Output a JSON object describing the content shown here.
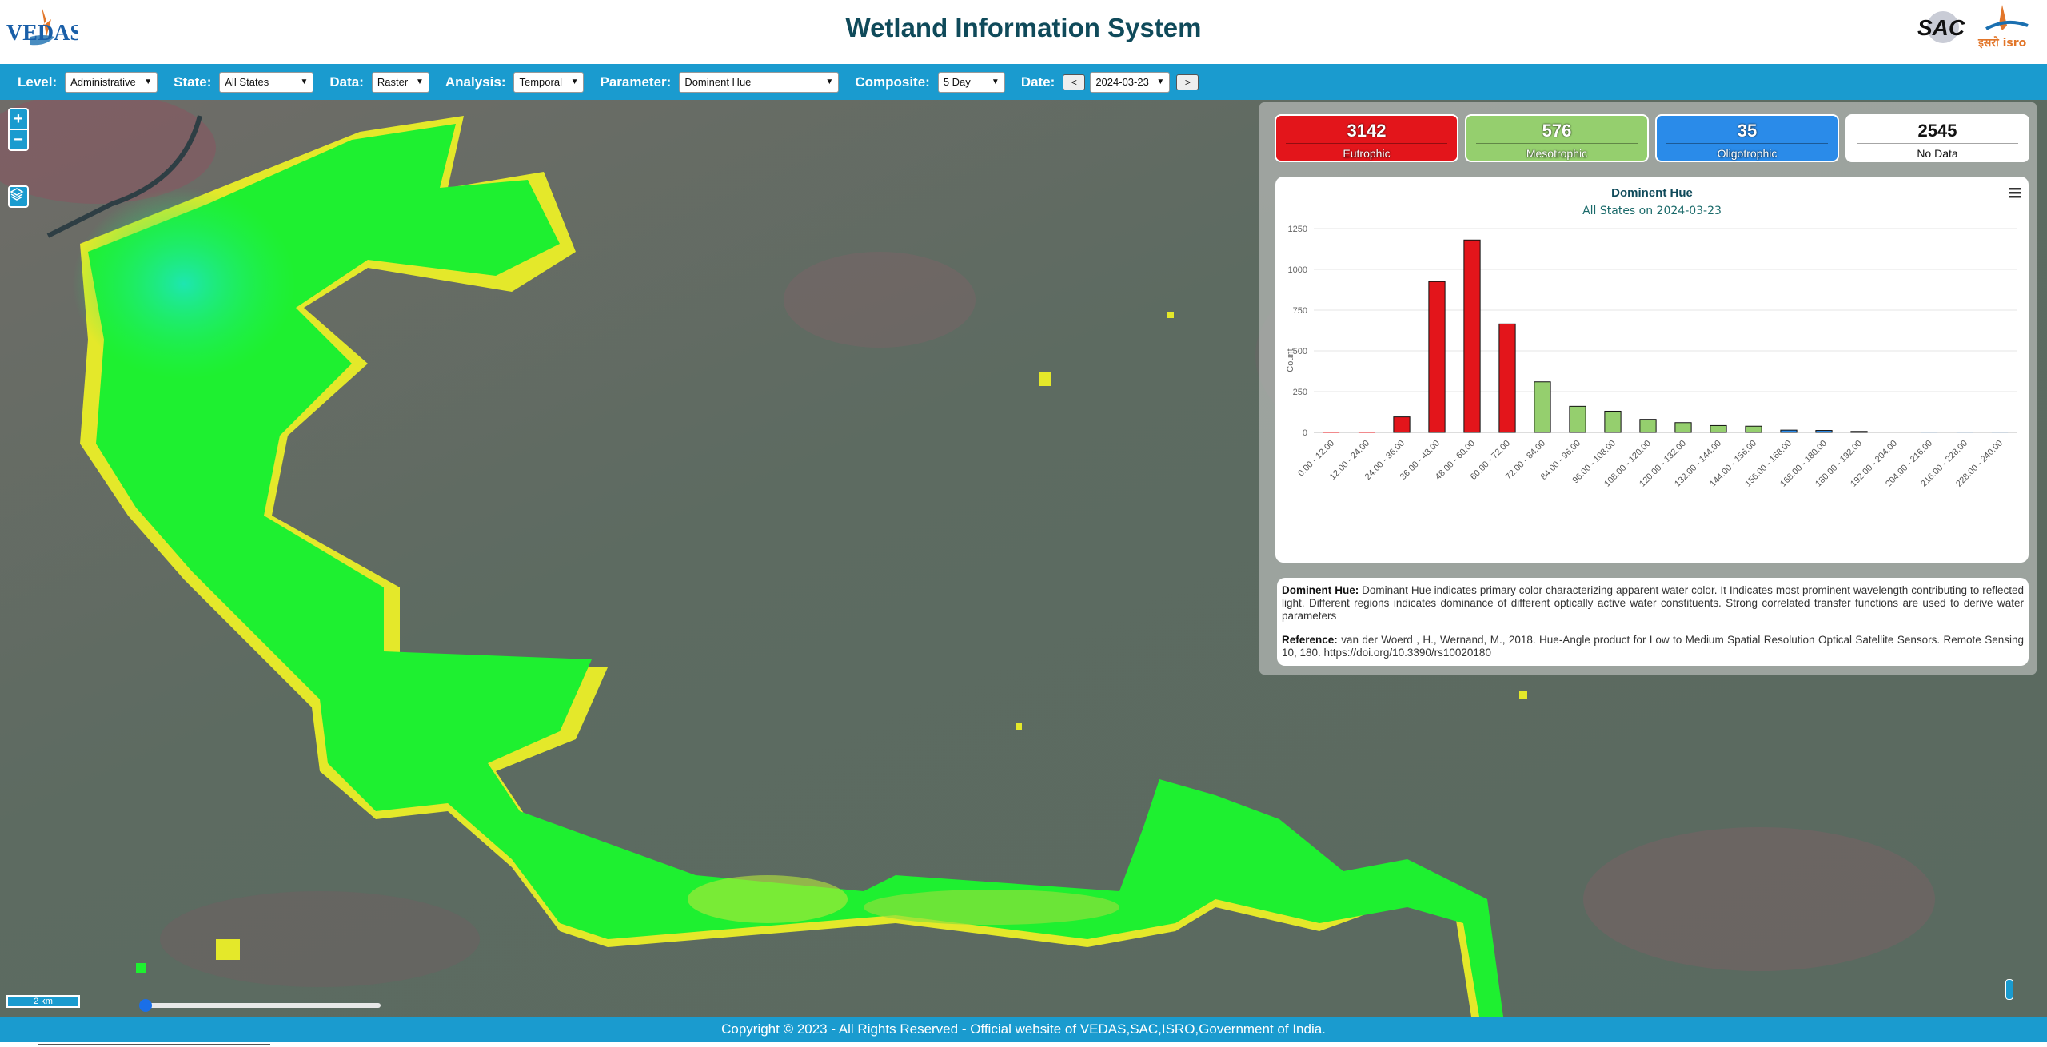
{
  "header": {
    "title": "Wetland Information System",
    "logos": {
      "left": "VEDAS",
      "right_1": "SAC",
      "right_2": "इसरो isro"
    }
  },
  "toolbar": {
    "level_label": "Level:",
    "level_value": "Administrative",
    "state_label": "State:",
    "state_value": "All States",
    "data_label": "Data:",
    "data_value": "Raster",
    "analysis_label": "Analysis:",
    "analysis_value": "Temporal",
    "parameter_label": "Parameter:",
    "parameter_value": "Dominent Hue",
    "composite_label": "Composite:",
    "composite_value": "5 Day",
    "date_label": "Date:",
    "date_value": "2024-03-23",
    "prev_label": "<",
    "next_label": ">"
  },
  "map": {
    "zoom_in": "+",
    "zoom_out": "−",
    "scale_label": "2 km",
    "icons": {
      "layers": "layers-icon"
    },
    "time_slider_position": 0.0
  },
  "stats": [
    {
      "value": "3142",
      "label": "Eutrophic",
      "color": "#e3151b"
    },
    {
      "value": "576",
      "label": "Mesotrophic",
      "color": "#95cf6e"
    },
    {
      "value": "35",
      "label": "Oligotrophic",
      "color": "#2a8be9"
    },
    {
      "value": "2545",
      "label": "No Data",
      "color": "#ffffff"
    }
  ],
  "chart_data": {
    "type": "bar",
    "title": "Dominent Hue",
    "subtitle": "All States on 2024-03-23",
    "xlabel": "",
    "ylabel": "Count",
    "ylim": [
      0,
      1250
    ],
    "yticks": [
      0,
      250,
      500,
      750,
      1000,
      1250
    ],
    "grid": true,
    "categories": [
      "0.00 - 12.00",
      "12.00 - 24.00",
      "24.00 - 36.00",
      "36.00 - 48.00",
      "48.00 - 60.00",
      "60.00 - 72.00",
      "72.00 - 84.00",
      "84.00 - 96.00",
      "96.00 - 108.00",
      "108.00 - 120.00",
      "120.00 - 132.00",
      "132.00 - 144.00",
      "144.00 - 156.00",
      "156.00 - 168.00",
      "168.00 - 180.00",
      "180.00 - 192.00",
      "192.00 - 204.00",
      "204.00 - 216.00",
      "216.00 - 228.00",
      "228.00 - 240.00"
    ],
    "values": [
      0,
      0,
      95,
      925,
      1180,
      665,
      310,
      160,
      130,
      80,
      60,
      42,
      38,
      14,
      12,
      6,
      3,
      2,
      2,
      2
    ],
    "colors": [
      "#e3151b",
      "#e3151b",
      "#e3151b",
      "#e3151b",
      "#e3151b",
      "#e3151b",
      "#95cf6e",
      "#95cf6e",
      "#95cf6e",
      "#95cf6e",
      "#95cf6e",
      "#95cf6e",
      "#95cf6e",
      "#2a8be9",
      "#2a8be9",
      "#2a8be9",
      "#2a8be9",
      "#2a8be9",
      "#2a8be9",
      "#2a8be9"
    ],
    "menu_icon": "hamburger-menu-icon"
  },
  "description": {
    "term": "Dominent Hue:",
    "text": "Dominant Hue indicates primary color characterizing apparent water color. It Indicates most prominent wavelength contributing to reflected light. Different regions indicates dominance of different optically active water constituents. Strong correlated transfer functions are used to derive water parameters",
    "ref_label": "Reference:",
    "ref_text": "van der Woerd , H., Wernand, M., 2018. Hue-Angle product for Low to Medium Spatial Resolution Optical Satellite Sensors. Remote Sensing 10, 180. https://doi.org/10.3390/rs10020180"
  },
  "footer": {
    "text": "Copyright © 2023 - All Rights Reserved - Official website of VEDAS,SAC,ISRO,Government of India."
  }
}
